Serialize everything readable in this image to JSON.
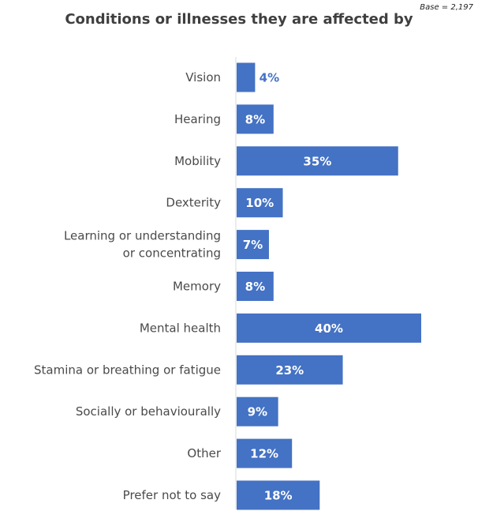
{
  "chart_data": {
    "type": "bar",
    "orientation": "horizontal",
    "title": "Conditions or illnesses they are affected by",
    "base_note": "Base = 2,197",
    "value_suffix": "%",
    "categories": [
      [
        "Vision"
      ],
      [
        "Hearing"
      ],
      [
        "Mobility"
      ],
      [
        "Dexterity"
      ],
      [
        "Learning or understanding",
        "or concentrating"
      ],
      [
        "Memory"
      ],
      [
        "Mental health"
      ],
      [
        "Stamina or breathing or fatigue"
      ],
      [
        "Socially or behaviourally"
      ],
      [
        "Other"
      ],
      [
        "Prefer not to say"
      ]
    ],
    "values": [
      4,
      8,
      35,
      10,
      7,
      8,
      40,
      23,
      9,
      12,
      18
    ],
    "data_labels": [
      "4%",
      "8%",
      "35%",
      "10%",
      "7%",
      "8%",
      "40%",
      "23%",
      "9%",
      "12%",
      "18%"
    ],
    "bar_color": "#4472c4",
    "axis_line_color": "#d9d9d9",
    "xlim": [
      0,
      40
    ],
    "grid": false,
    "legend": "none"
  }
}
